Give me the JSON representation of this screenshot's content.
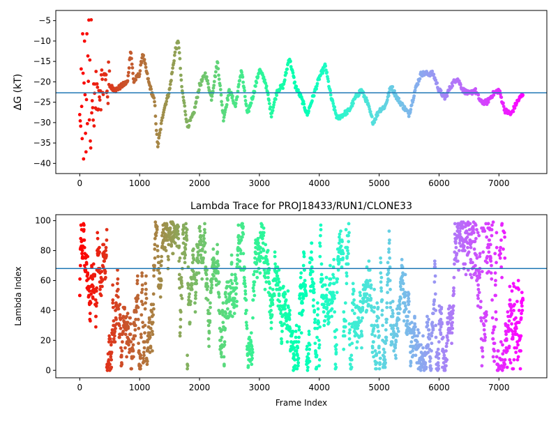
{
  "chart_data": [
    {
      "type": "scatter",
      "title": "",
      "xlabel": "",
      "ylabel": "ΔG (kT)",
      "xlim": [
        -400,
        7800
      ],
      "ylim": [
        -42.5,
        -2.5
      ],
      "xticks": [
        0,
        1000,
        2000,
        3000,
        4000,
        5000,
        6000,
        7000
      ],
      "yticks": [
        -40,
        -35,
        -30,
        -25,
        -20,
        -15,
        -10,
        -5
      ],
      "hline": -22.7,
      "hline_color": "#1f77b4",
      "colormap": "rainbow (red at frame 0 → violet at frame ~7400)",
      "marker_color_start": "#ff0000",
      "marker_color_end": "#8000ff",
      "trace_keypoints": [
        [
          0,
          -20
        ],
        [
          100,
          -25
        ],
        [
          200,
          -27
        ],
        [
          300,
          -22
        ],
        [
          400,
          -20
        ],
        [
          600,
          -22
        ],
        [
          800,
          -20
        ],
        [
          850,
          -12
        ],
        [
          900,
          -20
        ],
        [
          1000,
          -18
        ],
        [
          1050,
          -13
        ],
        [
          1150,
          -20
        ],
        [
          1250,
          -25
        ],
        [
          1300,
          -36
        ],
        [
          1400,
          -27
        ],
        [
          1500,
          -22
        ],
        [
          1600,
          -12
        ],
        [
          1650,
          -10
        ],
        [
          1700,
          -21
        ],
        [
          1800,
          -31
        ],
        [
          1900,
          -28
        ],
        [
          2000,
          -21
        ],
        [
          2100,
          -18
        ],
        [
          2200,
          -24
        ],
        [
          2300,
          -15
        ],
        [
          2400,
          -29
        ],
        [
          2500,
          -22
        ],
        [
          2600,
          -26
        ],
        [
          2700,
          -17
        ],
        [
          2800,
          -28
        ],
        [
          2900,
          -23
        ],
        [
          3000,
          -17
        ],
        [
          3100,
          -20
        ],
        [
          3200,
          -28
        ],
        [
          3300,
          -22
        ],
        [
          3400,
          -21
        ],
        [
          3500,
          -14
        ],
        [
          3600,
          -21
        ],
        [
          3700,
          -24
        ],
        [
          3800,
          -28
        ],
        [
          4000,
          -19
        ],
        [
          4100,
          -16
        ],
        [
          4200,
          -24
        ],
        [
          4300,
          -29
        ],
        [
          4400,
          -28
        ],
        [
          4500,
          -27
        ],
        [
          4600,
          -24
        ],
        [
          4700,
          -22
        ],
        [
          4800,
          -25
        ],
        [
          4900,
          -30
        ],
        [
          5000,
          -27
        ],
        [
          5100,
          -26
        ],
        [
          5200,
          -21
        ],
        [
          5300,
          -24
        ],
        [
          5500,
          -28
        ],
        [
          5600,
          -22
        ],
        [
          5700,
          -18
        ],
        [
          5900,
          -18
        ],
        [
          6000,
          -22
        ],
        [
          6100,
          -24
        ],
        [
          6200,
          -21
        ],
        [
          6300,
          -19
        ],
        [
          6400,
          -22
        ],
        [
          6500,
          -23
        ],
        [
          6600,
          -22
        ],
        [
          6700,
          -25
        ],
        [
          6800,
          -25
        ],
        [
          6900,
          -23
        ],
        [
          7000,
          -22
        ],
        [
          7100,
          -27
        ],
        [
          7200,
          -28
        ],
        [
          7300,
          -25
        ],
        [
          7400,
          -23
        ]
      ]
    },
    {
      "type": "scatter",
      "title": "Lambda Trace for PROJ18433/RUN1/CLONE33",
      "xlabel": "Frame Index",
      "ylabel": "Lambda Index",
      "xlim": [
        -400,
        7800
      ],
      "ylim": [
        -5,
        104
      ],
      "xticks": [
        0,
        1000,
        2000,
        3000,
        4000,
        5000,
        6000,
        7000
      ],
      "yticks": [
        0,
        20,
        40,
        60,
        80,
        100
      ],
      "hline": 68,
      "hline_color": "#1f77b4",
      "colormap": "rainbow (red at frame 0 → violet at frame ~7400)",
      "lambda_range": [
        0,
        99
      ],
      "frame_range": [
        0,
        7400
      ]
    }
  ]
}
